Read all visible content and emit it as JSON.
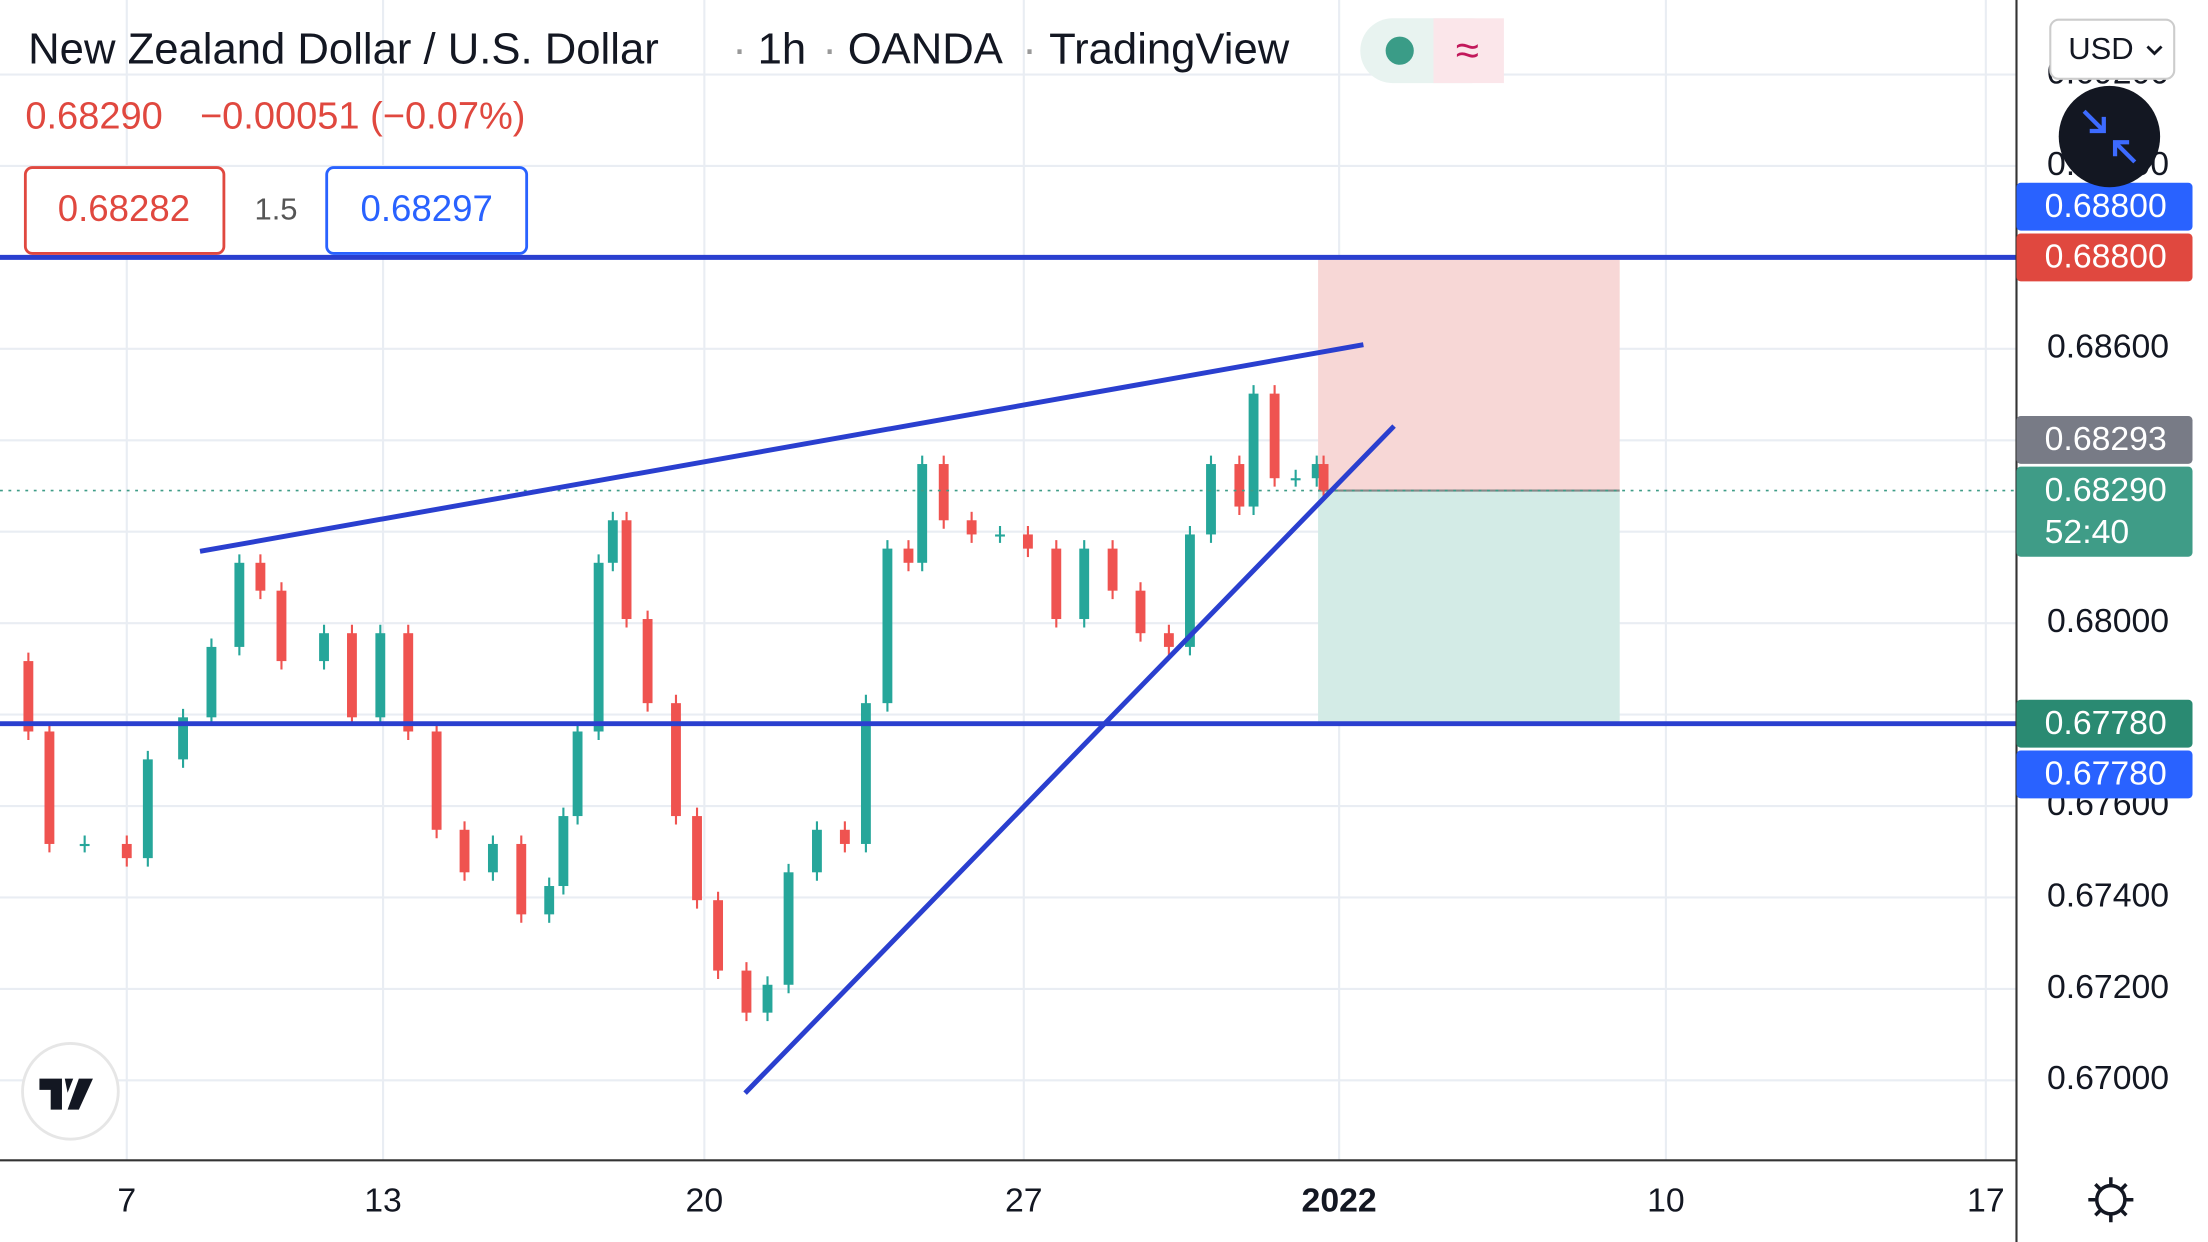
{
  "chart_data": {
    "type": "candlestick",
    "title": "New Zealand Dollar / U.S. Dollar",
    "interval": "1h",
    "broker": "OANDA",
    "source": "TradingView",
    "last_price": "0.68290",
    "change": "−0.00051 (−0.07%)",
    "bid": "0.68282",
    "spread": "1.5",
    "ask": "0.68297",
    "currency": "USD",
    "countdown": "52:40",
    "x": [
      4.23,
      4.85,
      5.31,
      6.08,
      7.0,
      7.46,
      8.23,
      8.85,
      9.46,
      9.92,
      10.38,
      11.31,
      11.92,
      12.54,
      13.15,
      13.77,
      14.38,
      15.0,
      15.62,
      16.23,
      16.54,
      16.85,
      17.31,
      17.62,
      17.92,
      18.38,
      19.0,
      19.46,
      19.92,
      20.54,
      21.0,
      21.46,
      22.08,
      22.69,
      23.15,
      23.62,
      24.08,
      24.38,
      24.85,
      25.46,
      26.08,
      26.69,
      27.31,
      27.92,
      28.54,
      29.15,
      29.77,
      30.23,
      30.69,
      31.31,
      31.62,
      32.08,
      32.54,
      33.0,
      33.15
    ],
    "closes": [
      0.67917,
      0.67763,
      0.67517,
      0.67517,
      0.67486,
      0.67702,
      0.67794,
      0.67948,
      0.68132,
      0.68071,
      0.67917,
      0.67978,
      0.67794,
      0.67978,
      0.67763,
      0.67548,
      0.67455,
      0.67517,
      0.67363,
      0.67425,
      0.67578,
      0.67763,
      0.68132,
      0.68225,
      0.68009,
      0.67825,
      0.67578,
      0.67394,
      0.6724,
      0.67148,
      0.67209,
      0.67455,
      0.67548,
      0.67517,
      0.67825,
      0.68163,
      0.68132,
      0.68348,
      0.68225,
      0.68194,
      0.68194,
      0.68163,
      0.68009,
      0.68163,
      0.68071,
      0.67978,
      0.67948,
      0.68194,
      0.68348,
      0.68255,
      0.68502,
      0.68317,
      0.68317,
      0.68348,
      0.6829
    ],
    "up_color": "#26a69a",
    "down_color": "#ef5350",
    "xlim": [
      4.23,
      48.29
    ],
    "xticks": [
      7,
      {
        "value": 12.6,
        "label": "13"
      },
      {
        "value": 19.62,
        "label": "20"
      },
      {
        "value": 26.6,
        "label": "27"
      },
      {
        "value": 33.49,
        "label": "2022"
      },
      {
        "value": 40.63,
        "label": "10"
      },
      {
        "value": 47.62,
        "label": "17"
      }
    ],
    "ylim": [
      0.66825,
      0.69363
    ],
    "yticks": [
      {
        "value": 0.67,
        "label": "0.67000"
      },
      {
        "value": 0.672,
        "label": "0.67200"
      },
      {
        "value": 0.674,
        "label": "0.67400"
      },
      {
        "value": 0.676,
        "label": "0.67600"
      },
      {
        "value": 0.678,
        "label": "0.67800"
      },
      {
        "value": 0.68,
        "label": "0.68000"
      },
      {
        "value": 0.682,
        "label": "0.68200"
      },
      {
        "value": 0.684,
        "label": "0.68400"
      },
      {
        "value": 0.686,
        "label": "0.68600"
      },
      {
        "value": 0.688,
        "label": "0.68800"
      },
      {
        "value": 0.69,
        "label": "0.69000"
      },
      {
        "value": 0.692,
        "label": "0.69200"
      }
    ],
    "grid": true,
    "levels": [
      {
        "value": 0.688,
        "color": "#2a3fcf"
      },
      {
        "value": 0.6778,
        "color": "#2a3fcf"
      }
    ],
    "trendlines": [
      {
        "x": [
          8.6,
          34.02
        ],
        "y": [
          0.68157,
          0.68609
        ],
        "color": "#2a3fcf"
      },
      {
        "x": [
          20.51,
          34.69
        ],
        "y": [
          0.66972,
          0.68431
        ],
        "color": "#2a3fcf"
      }
    ],
    "position": {
      "x": [
        33.03,
        39.62
      ],
      "entry": 0.6829,
      "stop": 0.688,
      "target": 0.6778
    },
    "price_badges": [
      {
        "value": 0.688,
        "label": "0.68800",
        "color": "#2962ff"
      },
      {
        "value": 0.688,
        "label": "0.68800",
        "color": "#e0483f"
      },
      {
        "value": 0.68293,
        "label": "0.68293",
        "color": "#787b86"
      },
      {
        "value": 0.6829,
        "label": "0.68290",
        "color": "#3f9c87"
      },
      {
        "value": 0.6778,
        "label": "0.67780",
        "color": "#2a8a72"
      },
      {
        "value": 0.6778,
        "label": "0.67780",
        "color": "#2962ff"
      }
    ]
  }
}
